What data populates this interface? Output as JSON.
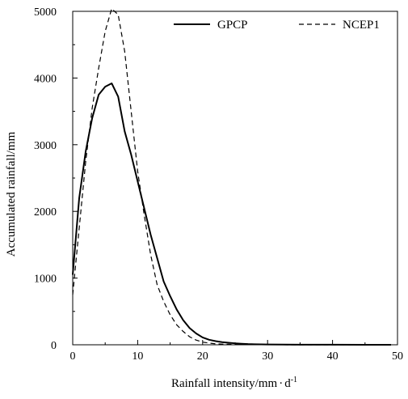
{
  "chart_data": {
    "type": "line",
    "xlabel": "Rainfall intensity/mm",
    "xlabel_unit": "d",
    "xlabel_unit_exp": "-1",
    "ylabel": "Accumulated rainfall/mm",
    "xlim": [
      0,
      50
    ],
    "ylim": [
      0,
      5000
    ],
    "xticks": [
      0,
      10,
      20,
      30,
      40,
      50
    ],
    "yticks": [
      0,
      1000,
      2000,
      3000,
      4000,
      5000
    ],
    "grid": false,
    "legend_position": "top-right",
    "series": [
      {
        "name": "GPCP",
        "style": "solid",
        "color": "#000000",
        "x": [
          0,
          1,
          2,
          3,
          4,
          5,
          6,
          7,
          8,
          9,
          10,
          11,
          12,
          13,
          14,
          15,
          16,
          17,
          18,
          19,
          20,
          21,
          22,
          23,
          24,
          25,
          26,
          27,
          28,
          30,
          35,
          40,
          45,
          49
        ],
        "y": [
          1050,
          2200,
          2900,
          3400,
          3750,
          3870,
          3920,
          3720,
          3200,
          2850,
          2450,
          2050,
          1650,
          1300,
          950,
          730,
          530,
          370,
          250,
          170,
          110,
          75,
          55,
          40,
          30,
          22,
          15,
          10,
          7,
          4,
          2,
          1,
          0,
          0
        ]
      },
      {
        "name": "NCEP1",
        "style": "dashed",
        "color": "#000000",
        "x": [
          0,
          1,
          2,
          3,
          4,
          5,
          6,
          7,
          8,
          9,
          10,
          11,
          12,
          13,
          14,
          15,
          16,
          17,
          18,
          19,
          20,
          21,
          22,
          23,
          24,
          25,
          26,
          27,
          28,
          30,
          35,
          40,
          45,
          49
        ],
        "y": [
          750,
          1750,
          2750,
          3550,
          4150,
          4700,
          5040,
          4950,
          4400,
          3500,
          2600,
          1950,
          1350,
          900,
          650,
          450,
          300,
          200,
          120,
          70,
          40,
          25,
          15,
          10,
          8,
          5,
          3,
          2,
          1,
          1,
          0,
          0,
          0,
          0
        ]
      }
    ]
  }
}
